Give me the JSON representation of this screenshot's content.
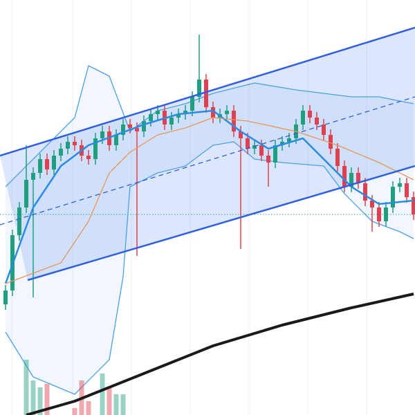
{
  "chart_data": {
    "type": "candlestick",
    "xlim": [
      -0.8,
      59.2
    ],
    "ylim": [
      0,
      600
    ],
    "xticks": [
      0.9,
      9.7,
      18.2,
      26.7,
      35.2,
      43.7,
      52.2
    ],
    "grid": true,
    "up_color": "#1f9e80",
    "down_color": "#e0404f",
    "open": [
      160,
      180,
      260,
      300,
      340,
      350,
      370,
      355,
      375,
      385,
      395,
      390,
      375,
      370,
      400,
      410,
      390,
      405,
      420,
      415,
      410,
      425,
      435,
      440,
      420,
      430,
      435,
      440,
      460,
      485,
      445,
      430,
      435,
      440,
      410,
      400,
      385,
      390,
      375,
      365,
      390,
      395,
      400,
      420,
      440,
      430,
      420,
      405,
      385,
      360,
      330,
      350,
      335,
      310,
      300,
      280,
      300,
      330,
      335,
      315
    ],
    "high": [
      188,
      268,
      308,
      390,
      358,
      378,
      378,
      383,
      393,
      403,
      403,
      398,
      383,
      408,
      418,
      418,
      413,
      428,
      428,
      423,
      433,
      443,
      448,
      448,
      438,
      443,
      448,
      468,
      550,
      493,
      453,
      443,
      448,
      448,
      418,
      408,
      398,
      398,
      383,
      398,
      403,
      408,
      428,
      448,
      448,
      438,
      428,
      413,
      393,
      368,
      358,
      358,
      343,
      318,
      308,
      308,
      338,
      343,
      343,
      323
    ],
    "low": [
      152,
      172,
      252,
      292,
      170,
      342,
      347,
      347,
      367,
      377,
      382,
      367,
      362,
      362,
      392,
      382,
      382,
      397,
      407,
      230,
      402,
      417,
      427,
      412,
      412,
      422,
      427,
      432,
      452,
      437,
      422,
      422,
      427,
      402,
      240,
      377,
      377,
      367,
      330,
      357,
      382,
      387,
      392,
      412,
      422,
      412,
      397,
      377,
      352,
      322,
      322,
      327,
      302,
      265,
      272,
      272,
      292,
      322,
      307,
      282
    ],
    "close": [
      180,
      260,
      300,
      340,
      350,
      370,
      355,
      375,
      385,
      395,
      390,
      375,
      370,
      400,
      410,
      390,
      405,
      420,
      415,
      410,
      425,
      435,
      440,
      420,
      430,
      435,
      440,
      460,
      485,
      445,
      430,
      435,
      440,
      410,
      400,
      385,
      390,
      375,
      365,
      390,
      395,
      400,
      420,
      440,
      430,
      420,
      405,
      385,
      360,
      330,
      350,
      335,
      310,
      300,
      280,
      300,
      330,
      335,
      315,
      290
    ],
    "channel": {
      "color": "#2f5fe0",
      "upper": {
        "x": [
          -0.8,
          59.2
        ],
        "values": [
          375,
          560
        ]
      },
      "lower": {
        "x": [
          3.2,
          59.2
        ],
        "values": [
          195,
          360
        ]
      },
      "middle": {
        "x": [
          -0.8,
          59.2
        ],
        "values": [
          275,
          460
        ]
      }
    },
    "hline": 290,
    "bands": {
      "color": "#4a9ee8",
      "upper": {
        "x": [
          0,
          10,
          12,
          15,
          18,
          22,
          26,
          30,
          36,
          42,
          50,
          54,
          59
        ],
        "values": [
          330,
          430,
          505,
          490,
          410,
          440,
          450,
          465,
          480,
          470,
          460,
          460,
          450
        ]
      },
      "lower": {
        "x": [
          0,
          4,
          10,
          15,
          17,
          18,
          22,
          26,
          30,
          33,
          36,
          40,
          46,
          49,
          53,
          57,
          59
        ],
        "values": [
          120,
          55,
          30,
          80,
          200,
          330,
          350,
          360,
          390,
          395,
          370,
          365,
          360,
          320,
          280,
          265,
          255
        ]
      }
    },
    "overlays": [
      {
        "color": "#2a8be0",
        "x": [
          0,
          4,
          8,
          12,
          16,
          20,
          25,
          30,
          34,
          38,
          43,
          47,
          50,
          54,
          59
        ],
        "values": [
          190,
          300,
          360,
          390,
          405,
          420,
          435,
          440,
          410,
          385,
          400,
          360,
          330,
          305,
          310
        ]
      },
      {
        "color": "#e8955a",
        "x": [
          0,
          8,
          12,
          15,
          18,
          22,
          26,
          30,
          35,
          42,
          48,
          54,
          59
        ],
        "values": [
          190,
          220,
          280,
          350,
          380,
          405,
          415,
          430,
          425,
          410,
          390,
          365,
          340
        ]
      },
      {
        "color": "#1a1a1a",
        "x": [
          3,
          10,
          20,
          30,
          40,
          50,
          59
        ],
        "values": [
          0,
          20,
          60,
          100,
          130,
          155,
          175
        ]
      }
    ],
    "volume": {
      "x": [
        3,
        4,
        5,
        6,
        10,
        11,
        12,
        14,
        15,
        16,
        17
      ],
      "values": [
        80,
        50,
        40,
        45,
        10,
        50,
        20,
        60,
        40,
        30,
        30
      ]
    }
  }
}
